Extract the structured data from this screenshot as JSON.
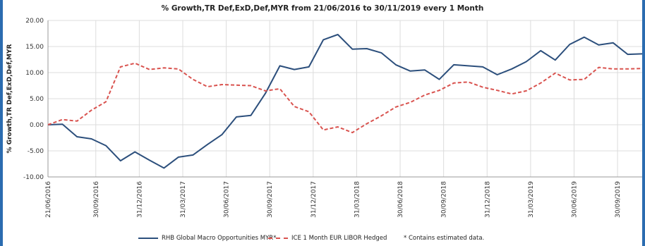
{
  "chart_data": {
    "type": "line",
    "title": "% Growth,TR Def,ExD,Def,MYR from 21/06/2016 to 30/11/2019 every 1 Month",
    "ylabel": "% Growth,TR Def,ExD,Def,MYR",
    "xlabel": "",
    "ylim": [
      -10,
      20
    ],
    "yticks": [
      "20.00",
      "15.00",
      "10.00",
      "5.00",
      "0.00",
      "-5.00",
      "-10.00"
    ],
    "ytick_values": [
      20,
      15,
      10,
      5,
      0,
      -5,
      -10
    ],
    "xticks": [
      "21/06/2016",
      "30/09/2016",
      "31/12/2016",
      "31/03/2017",
      "30/06/2017",
      "30/09/2017",
      "31/12/2017",
      "31/03/2018",
      "30/06/2018",
      "30/09/2018",
      "31/12/2018",
      "31/03/2019",
      "30/06/2019",
      "30/09/2019"
    ],
    "xtick_index": [
      0,
      3.3,
      6.3,
      9.3,
      12.3,
      15.3,
      18.3,
      21.3,
      24.3,
      27.3,
      30.3,
      33.3,
      36.3,
      39.3
    ],
    "grid": true,
    "legend_position": "bottom",
    "series": [
      {
        "name": "RHB Global Macro Opportunities MYR*",
        "color": "#2c4f7c",
        "style": "solid",
        "values": [
          0.0,
          0.1,
          -2.3,
          -2.7,
          -4.0,
          -6.9,
          -5.2,
          -6.8,
          -8.3,
          -6.2,
          -5.8,
          -3.8,
          -1.9,
          1.5,
          1.8,
          6.0,
          11.3,
          10.6,
          11.1,
          16.3,
          17.3,
          14.5,
          14.6,
          13.8,
          11.5,
          10.3,
          10.5,
          8.7,
          11.5,
          11.3,
          11.1,
          9.6,
          10.7,
          12.1,
          14.2,
          12.4,
          15.4,
          16.8,
          15.3,
          15.7,
          13.5,
          13.6
        ]
      },
      {
        "name": "ICE 1 Month EUR LIBOR Hedged",
        "color": "#d9534f",
        "style": "dashed",
        "values": [
          0.0,
          1.0,
          0.7,
          2.8,
          4.4,
          11.1,
          11.8,
          10.6,
          10.9,
          10.7,
          8.7,
          7.3,
          7.7,
          7.6,
          7.5,
          6.5,
          6.9,
          3.5,
          2.5,
          -1.0,
          -0.4,
          -1.5,
          0.2,
          1.7,
          3.4,
          4.3,
          5.7,
          6.6,
          8.0,
          8.2,
          7.2,
          6.6,
          5.9,
          6.5,
          8.0,
          9.9,
          8.6,
          8.7,
          11.0,
          10.7,
          10.7,
          10.8
        ]
      }
    ]
  },
  "legend": {
    "footnote": "*  Contains estimated data."
  }
}
